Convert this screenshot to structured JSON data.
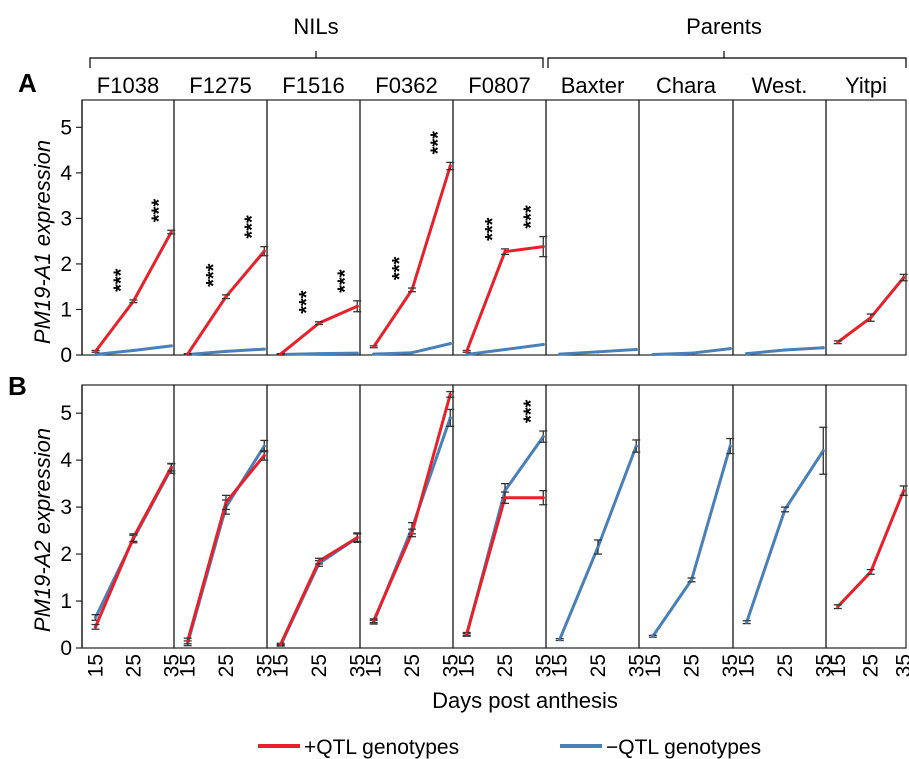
{
  "group_labels": [
    "NILs",
    "Parents"
  ],
  "x_axis_label": "Days post anthesis",
  "legend": [
    {
      "label": "+QTL genotypes",
      "color": "#e8202a"
    },
    {
      "label": "−QTL genotypes",
      "color": "#4a80b8"
    }
  ],
  "chart_data": {
    "type": "line",
    "lines": [
      "F1038",
      "F1275",
      "F1516",
      "F0362",
      "F0807",
      "Baxter",
      "Chara",
      "West.",
      "Yitpi"
    ],
    "nil_count": 5,
    "x": [
      15,
      25,
      35
    ],
    "x_tick_labels": [
      "15",
      "25",
      "35"
    ],
    "series_names": [
      "+QTL genotypes",
      "−QTL genotypes"
    ],
    "colors": {
      "plus": "#e8202a",
      "minus": "#4a80b8"
    },
    "panels": [
      {
        "letter": "A",
        "ylabel": "PM19-A1 expression",
        "ylim": [
          0,
          5.6
        ],
        "yticks": [
          0,
          1,
          2,
          3,
          4,
          5
        ],
        "data": {
          "F1038": {
            "plus": [
              0.08,
              1.18,
              2.7
            ],
            "plus_err": [
              0.02,
              0.03,
              0.04
            ],
            "minus": [
              0.01,
              0.1,
              0.2
            ],
            "sig": [
              "",
              "***",
              "***"
            ]
          },
          "F1275": {
            "plus": [
              0.02,
              1.28,
              2.28
            ],
            "plus_err": [
              0.01,
              0.04,
              0.1
            ],
            "minus": [
              0.01,
              0.08,
              0.13
            ],
            "sig": [
              "",
              "***",
              "***"
            ]
          },
          "F1516": {
            "plus": [
              0.02,
              0.7,
              1.07
            ],
            "plus_err": [
              0.01,
              0.03,
              0.12
            ],
            "minus": [
              0.01,
              0.03,
              0.04
            ],
            "sig": [
              "",
              "***",
              "***"
            ]
          },
          "F0362": {
            "plus": [
              0.18,
              1.43,
              4.15
            ],
            "plus_err": [
              0.02,
              0.04,
              0.08
            ],
            "minus": [
              0.02,
              0.05,
              0.25
            ],
            "sig": [
              "",
              "***",
              "***"
            ]
          },
          "F0807": {
            "plus": [
              0.08,
              2.27,
              2.38
            ],
            "plus_err": [
              0.02,
              0.06,
              0.22
            ],
            "minus": [
              0.01,
              0.12,
              0.23
            ],
            "sig": [
              "",
              "***",
              "***"
            ]
          },
          "Baxter": {
            "minus": [
              0.02,
              0.07,
              0.12
            ]
          },
          "Chara": {
            "minus": [
              0.01,
              0.04,
              0.14
            ]
          },
          "West.": {
            "minus": [
              0.03,
              0.11,
              0.16
            ]
          },
          "Yitpi": {
            "plus": [
              0.28,
              0.82,
              1.7
            ],
            "plus_err": [
              0.03,
              0.08,
              0.07
            ]
          }
        }
      },
      {
        "letter": "B",
        "ylabel": "PM19-A2 expression",
        "ylim": [
          0,
          5.6
        ],
        "yticks": [
          0,
          1,
          2,
          3,
          4,
          5
        ],
        "data": {
          "F1038": {
            "plus": [
              0.45,
              2.35,
              3.85
            ],
            "plus_err": [
              0.05,
              0.08,
              0.08
            ],
            "minus": [
              0.65,
              2.32,
              3.82
            ],
            "minus_err": [
              0.06,
              0.08,
              0.1
            ],
            "sig": [
              "",
              "",
              ""
            ]
          },
          "F1275": {
            "plus": [
              0.15,
              3.1,
              4.1
            ],
            "plus_err": [
              0.06,
              0.15,
              0.1
            ],
            "minus": [
              0.1,
              3.0,
              4.3
            ],
            "minus_err": [
              0.05,
              0.15,
              0.12
            ],
            "sig": [
              "",
              "",
              ""
            ]
          },
          "F1516": {
            "plus": [
              0.08,
              1.85,
              2.35
            ],
            "plus_err": [
              0.02,
              0.06,
              0.08
            ],
            "minus": [
              0.06,
              1.8,
              2.35
            ],
            "minus_err": [
              0.02,
              0.06,
              0.1
            ],
            "sig": [
              "",
              "",
              ""
            ]
          },
          "F0362": {
            "plus": [
              0.58,
              2.45,
              5.4
            ],
            "plus_err": [
              0.04,
              0.08,
              0.06
            ],
            "minus": [
              0.55,
              2.55,
              4.9
            ],
            "minus_err": [
              0.04,
              0.12,
              0.18
            ],
            "sig": [
              "",
              "",
              ""
            ]
          },
          "F0807": {
            "plus": [
              0.3,
              3.2,
              3.2
            ],
            "plus_err": [
              0.03,
              0.12,
              0.15
            ],
            "minus": [
              0.28,
              3.35,
              4.5
            ],
            "minus_err": [
              0.03,
              0.15,
              0.12
            ],
            "sig": [
              "",
              "",
              "***"
            ]
          },
          "Baxter": {
            "minus": [
              0.18,
              2.15,
              4.3
            ],
            "minus_err": [
              0.02,
              0.15,
              0.13
            ]
          },
          "Chara": {
            "minus": [
              0.25,
              1.45,
              4.3
            ],
            "minus_err": [
              0.02,
              0.04,
              0.16
            ]
          },
          "West.": {
            "minus": [
              0.55,
              2.95,
              4.2
            ],
            "minus_err": [
              0.03,
              0.05,
              0.5
            ]
          },
          "Yitpi": {
            "plus": [
              0.88,
              1.62,
              3.35
            ],
            "plus_err": [
              0.04,
              0.05,
              0.1
            ]
          }
        }
      }
    ]
  }
}
